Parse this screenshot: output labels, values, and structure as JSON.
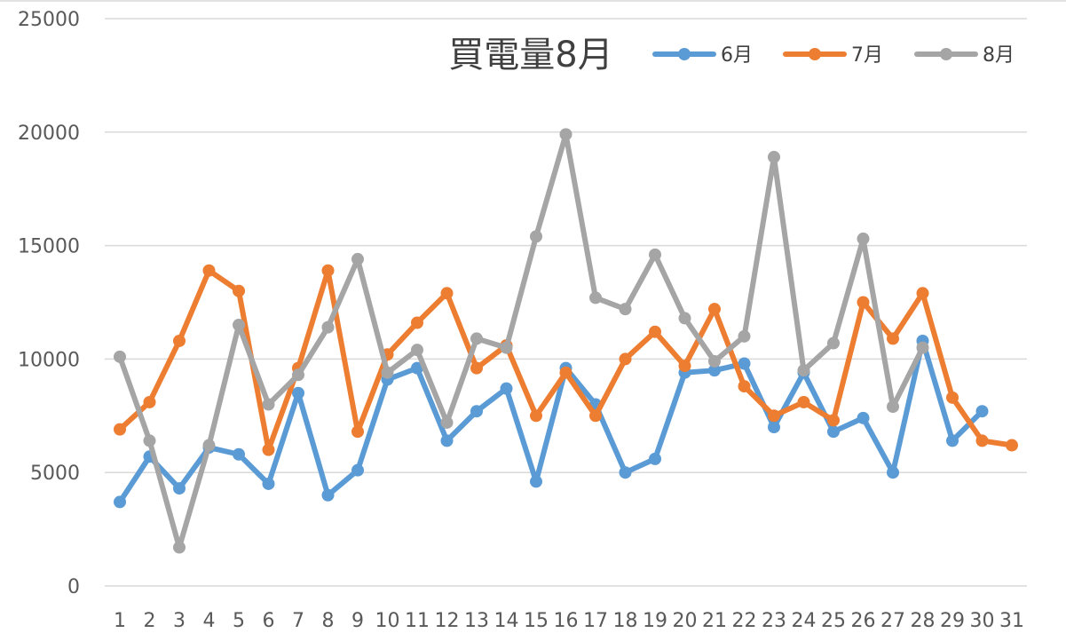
{
  "chart_data": {
    "type": "line",
    "title": "買電量8月",
    "xlabel": "",
    "ylabel": "",
    "ylim": [
      0,
      25000
    ],
    "yticks": [
      0,
      5000,
      10000,
      15000,
      20000,
      25000
    ],
    "grid": true,
    "legend_position": "top-right",
    "categories": [
      "1",
      "2",
      "3",
      "4",
      "5",
      "6",
      "7",
      "8",
      "9",
      "10",
      "11",
      "12",
      "13",
      "14",
      "15",
      "16",
      "17",
      "18",
      "19",
      "20",
      "21",
      "22",
      "23",
      "24",
      "25",
      "26",
      "27",
      "28",
      "29",
      "30",
      "31"
    ],
    "series": [
      {
        "name": "6月",
        "color": "#5b9bd5",
        "values": [
          3700,
          5700,
          4300,
          6100,
          5800,
          4500,
          8500,
          4000,
          5100,
          9100,
          9600,
          6400,
          7700,
          8700,
          4600,
          9600,
          8000,
          5000,
          5600,
          9400,
          9500,
          9800,
          7000,
          9400,
          6800,
          7400,
          5000,
          10800,
          6400,
          7700,
          null
        ]
      },
      {
        "name": "7月",
        "color": "#ed7d31",
        "values": [
          6900,
          8100,
          10800,
          13900,
          13000,
          6000,
          9600,
          13900,
          6800,
          10200,
          11600,
          12900,
          9600,
          10600,
          7500,
          9400,
          7500,
          10000,
          11200,
          9700,
          12200,
          8800,
          7500,
          8100,
          7300,
          12500,
          10900,
          12900,
          8300,
          6400,
          6200
        ]
      },
      {
        "name": "8月",
        "color": "#a5a5a5",
        "values": [
          10100,
          6400,
          1700,
          6200,
          11500,
          8000,
          9300,
          11400,
          14400,
          9400,
          10400,
          7200,
          10900,
          10500,
          15400,
          19900,
          12700,
          12200,
          14600,
          11800,
          9900,
          11000,
          18900,
          9500,
          10700,
          15300,
          7900,
          10500,
          null,
          null,
          null
        ]
      }
    ]
  }
}
